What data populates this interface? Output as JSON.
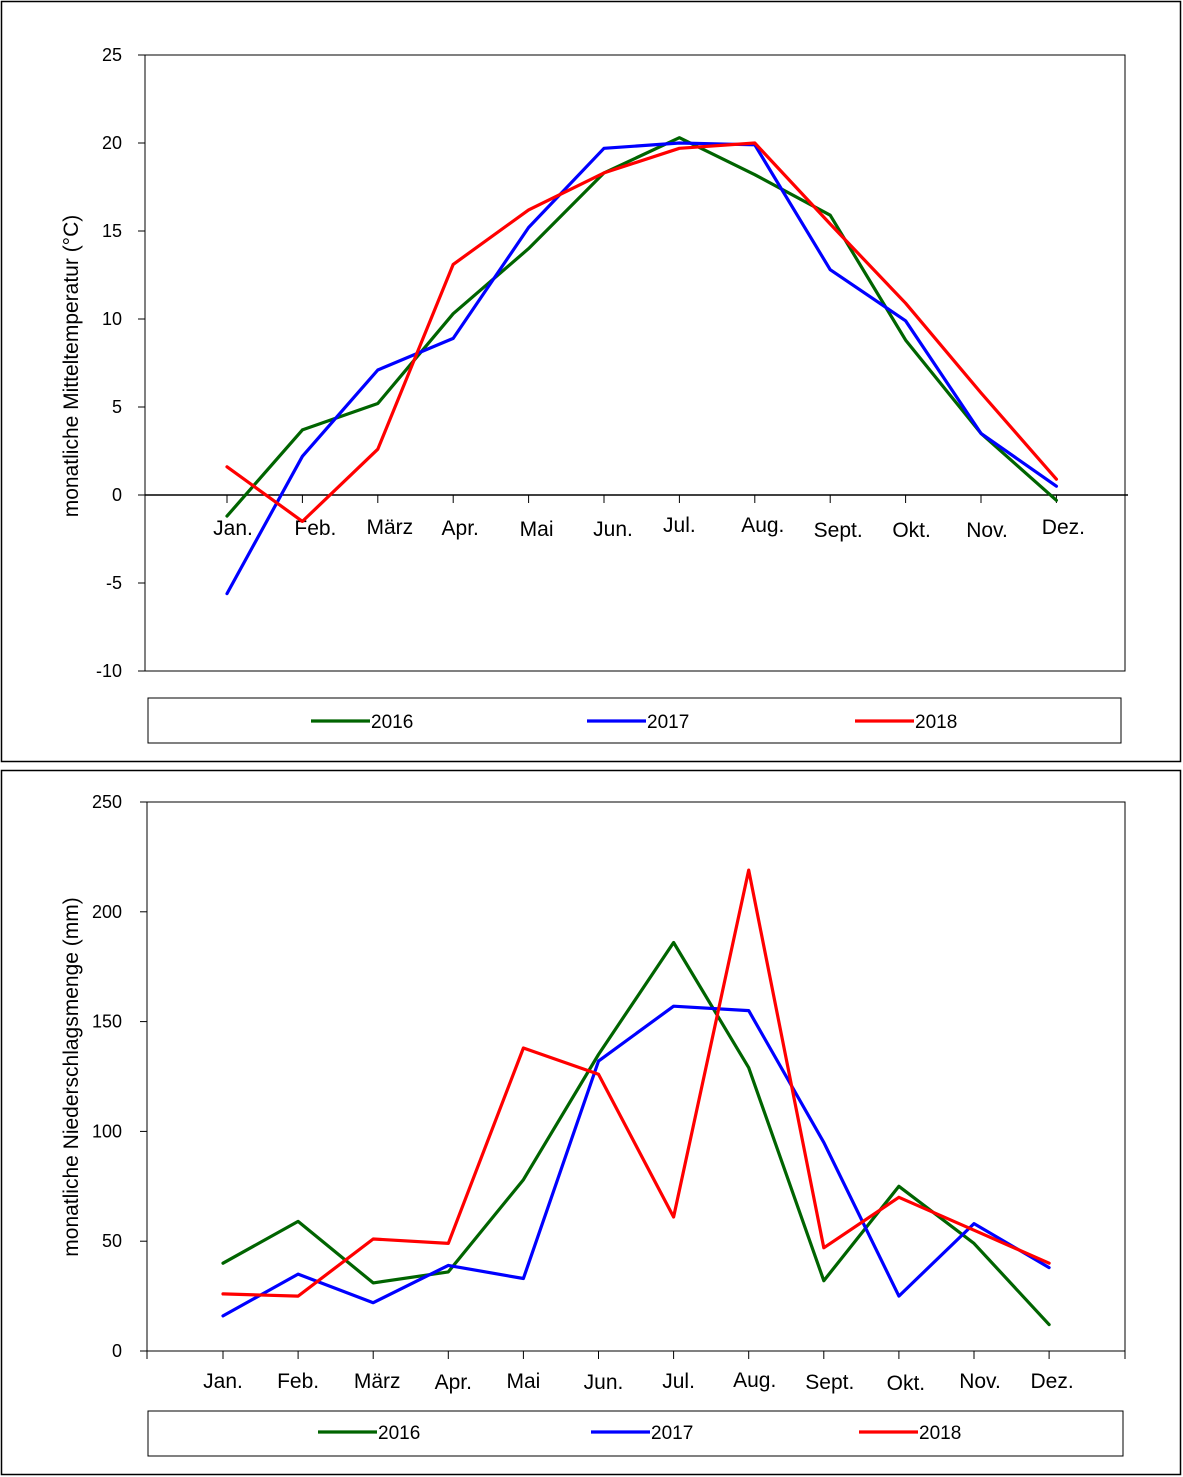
{
  "chart_data": [
    {
      "type": "line",
      "title": "",
      "xlabel": "",
      "ylabel": "monatliche Mitteltemperatur (°C)",
      "ylim": [
        -10,
        25
      ],
      "yticks": [
        25,
        20,
        15,
        10,
        5,
        0,
        -5,
        -10
      ],
      "categories": [
        "Jan.",
        "Feb.",
        "März",
        "Apr.",
        "Mai",
        "Jun.",
        "Jul.",
        "Aug.",
        "Sept.",
        "Okt.",
        "Nov.",
        "Dez."
      ],
      "legend_position": "bottom",
      "grid": false,
      "series": [
        {
          "name": "2016",
          "color": "#006400",
          "values": [
            -1.2,
            3.7,
            5.2,
            10.3,
            14.0,
            18.3,
            20.3,
            18.2,
            15.9,
            8.8,
            3.5,
            -0.3
          ]
        },
        {
          "name": "2017",
          "color": "#0000FF",
          "values": [
            -5.6,
            2.2,
            7.1,
            8.9,
            15.2,
            19.7,
            20.0,
            19.9,
            12.8,
            9.9,
            3.5,
            0.5
          ]
        },
        {
          "name": "2018",
          "color": "#FF0000",
          "values": [
            1.6,
            -1.5,
            2.6,
            13.1,
            16.2,
            18.3,
            19.7,
            20.0,
            15.4,
            10.9,
            5.8,
            0.9
          ]
        }
      ]
    },
    {
      "type": "line",
      "title": "",
      "xlabel": "",
      "ylabel": "monatliche Niederschlagsmenge (mm)",
      "ylim": [
        0,
        250
      ],
      "yticks": [
        250,
        200,
        150,
        100,
        50,
        0
      ],
      "categories": [
        "Jan.",
        "Feb.",
        "März",
        "Apr.",
        "Mai",
        "Jun.",
        "Jul.",
        "Aug.",
        "Sept.",
        "Okt.",
        "Nov.",
        "Dez."
      ],
      "legend_position": "bottom",
      "grid": false,
      "series": [
        {
          "name": "2016",
          "color": "#006400",
          "values": [
            40,
            59,
            31,
            36,
            78,
            135,
            186,
            129,
            32,
            75,
            49,
            12
          ]
        },
        {
          "name": "2017",
          "color": "#0000FF",
          "values": [
            16,
            35,
            22,
            39,
            33,
            132,
            157,
            155,
            95,
            25,
            58,
            38
          ]
        },
        {
          "name": "2018",
          "color": "#FF0000",
          "values": [
            26,
            25,
            51,
            49,
            138,
            126,
            61,
            219,
            47,
            70,
            55,
            40
          ]
        }
      ]
    }
  ]
}
